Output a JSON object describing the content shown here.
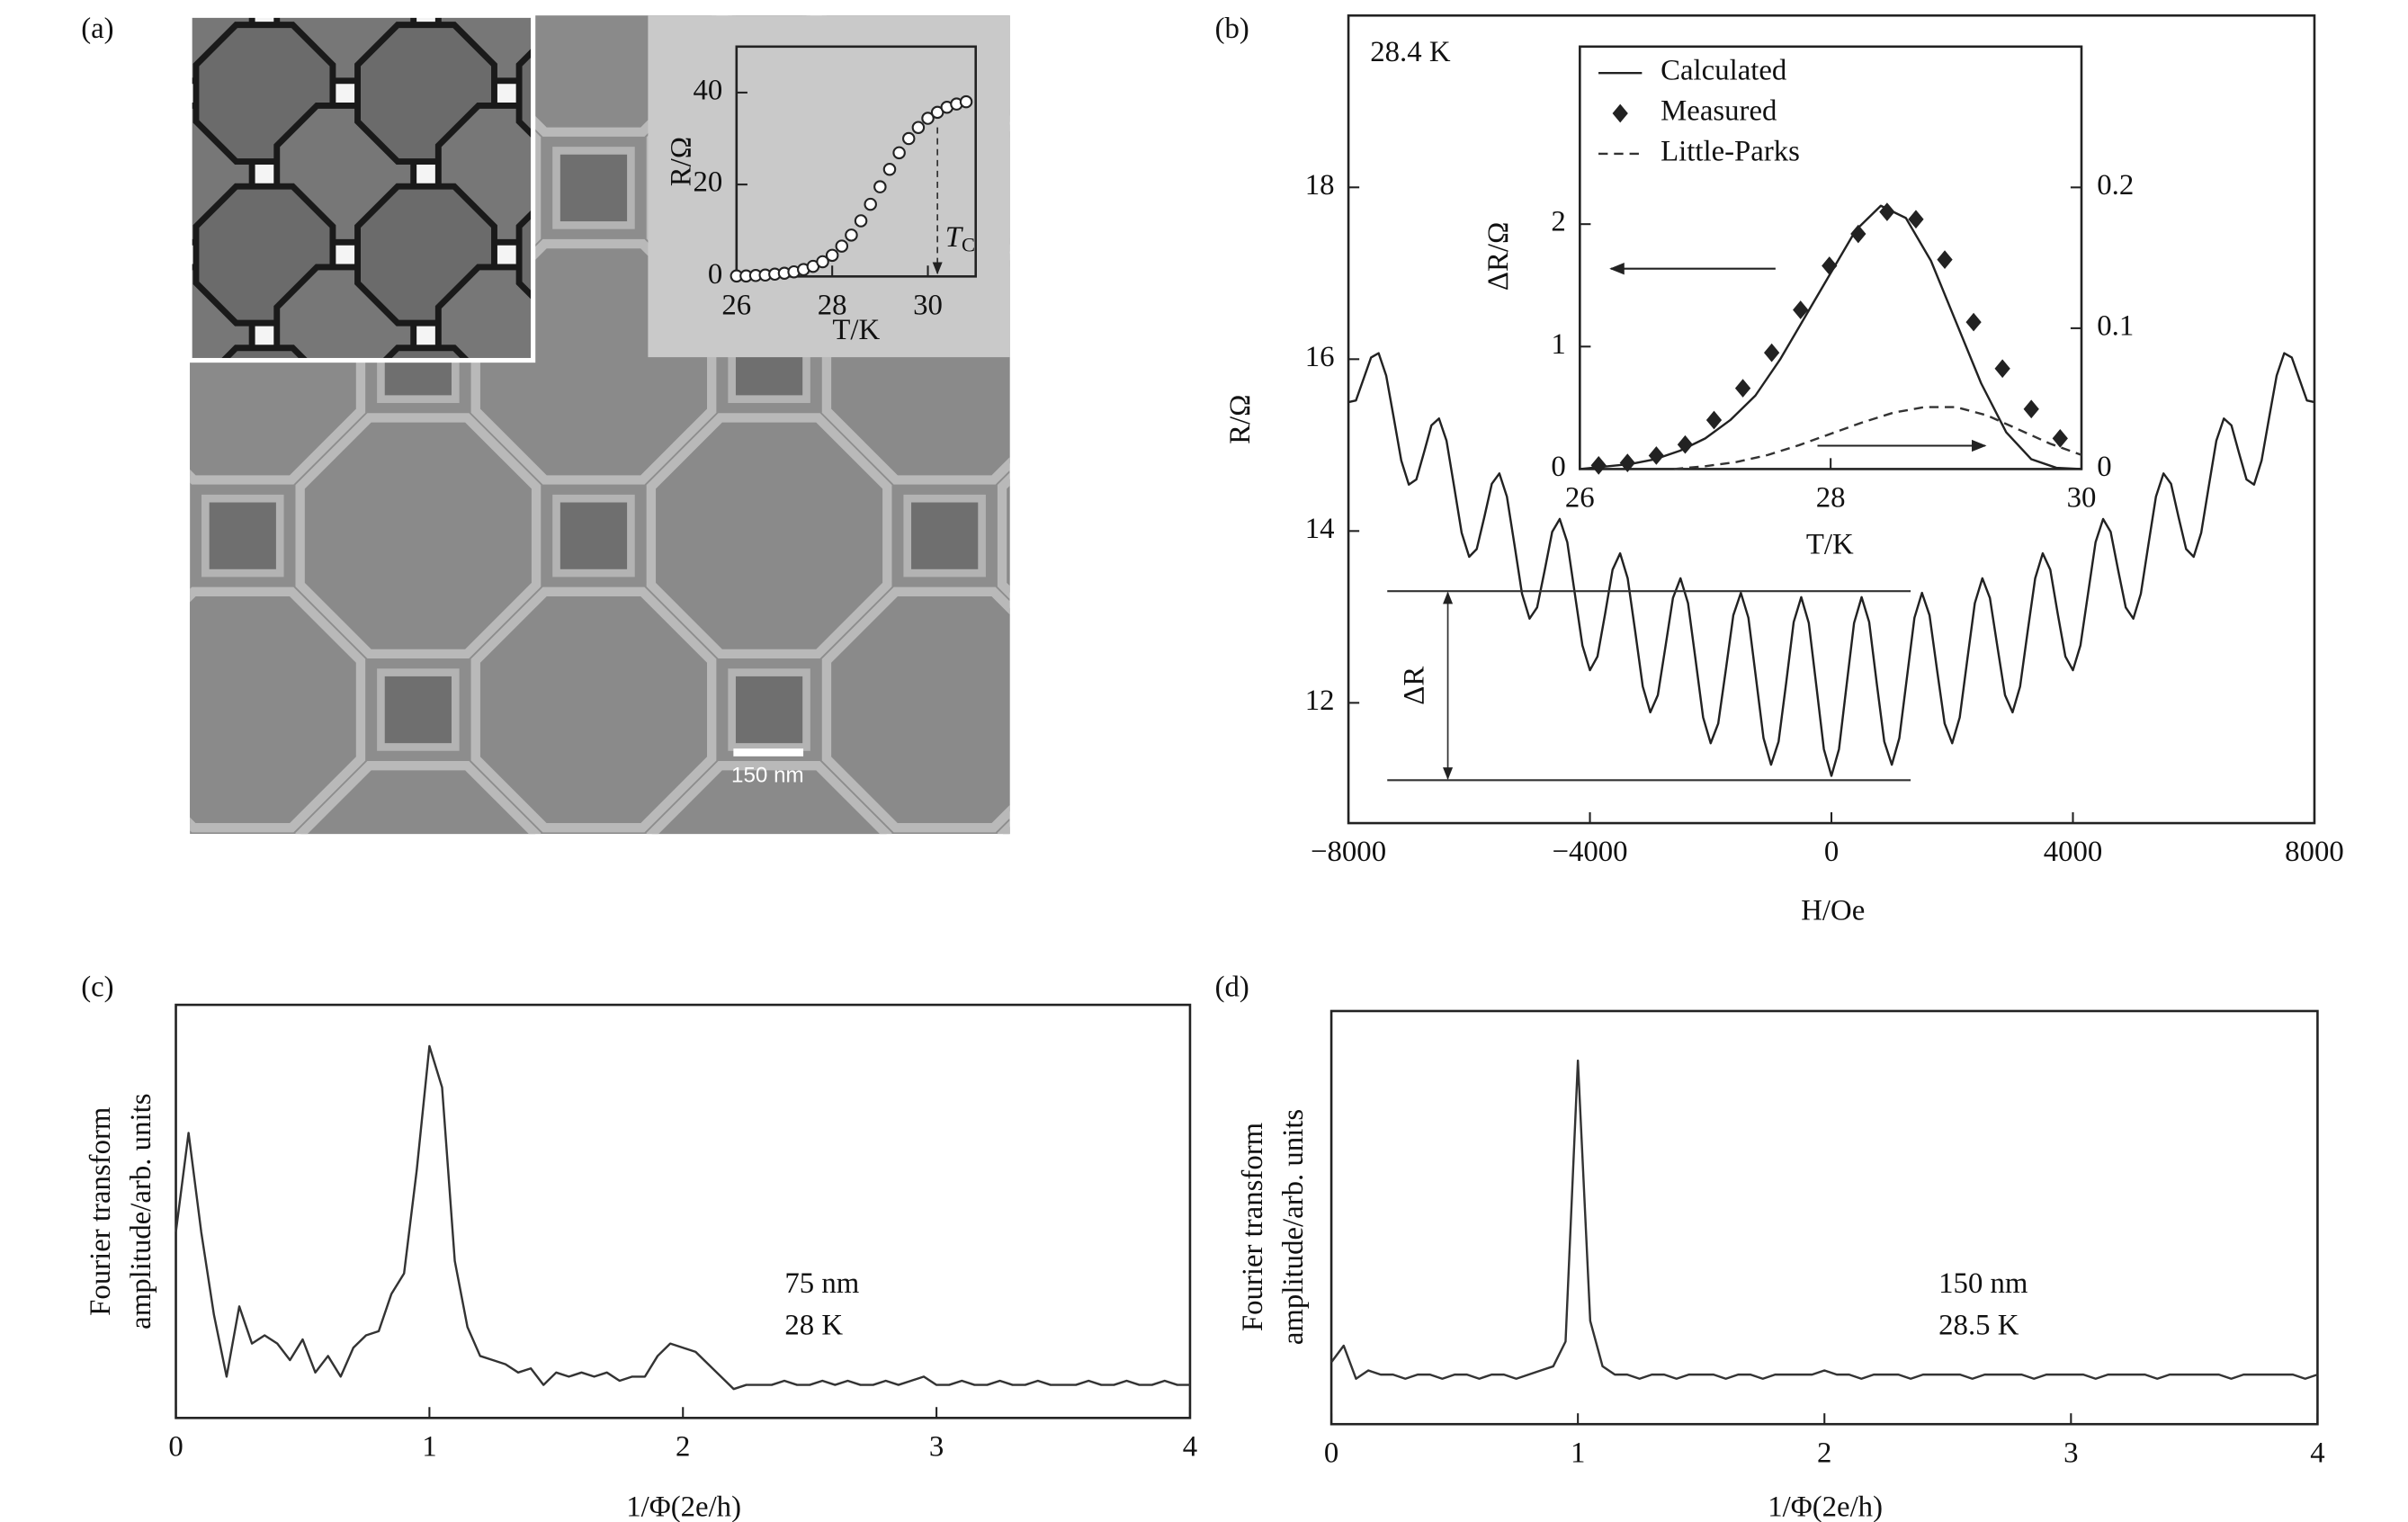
{
  "panels": [
    "(a)",
    "(b)",
    "(c)",
    "(d)"
  ],
  "scale_bar": "150 nm",
  "chart_data": [
    {
      "type": "scatter",
      "x_label": "T/K",
      "y_label": "R/Ω",
      "xlim": [
        26,
        31
      ],
      "ylim": [
        0,
        50
      ],
      "xticks": [
        26,
        28,
        30
      ],
      "yticks": [
        0,
        20,
        40
      ],
      "tc": {
        "label": "T",
        "sub": "C",
        "value": 30.2
      },
      "series": [
        {
          "color": "#222",
          "style": "markers",
          "marker": "circle",
          "x": [
            26.0,
            26.2,
            26.4,
            26.6,
            26.8,
            27.0,
            27.2,
            27.4,
            27.6,
            27.8,
            28.0,
            28.2,
            28.4,
            28.6,
            28.8,
            29.0,
            29.2,
            29.4,
            29.6,
            29.8,
            30.0,
            30.2,
            30.4,
            30.6,
            30.8
          ],
          "values": [
            0.1,
            0.1,
            0.2,
            0.3,
            0.5,
            0.7,
            1.0,
            1.5,
            2.2,
            3.2,
            4.6,
            6.6,
            9.0,
            12.1,
            15.7,
            19.5,
            23.3,
            26.9,
            30.0,
            32.4,
            34.4,
            35.7,
            36.8,
            37.5,
            38.0
          ]
        }
      ]
    },
    {
      "type": "line",
      "x_label": "H/Oe",
      "y_label": "R/Ω",
      "xlim": [
        -8000,
        8000
      ],
      "ylim": [
        10.6,
        20.0
      ],
      "xticks": [
        {
          "value": -8000,
          "label": "−8000"
        },
        {
          "value": -4000,
          "label": "−4000"
        },
        0,
        4000,
        8000
      ],
      "yticks": [
        12,
        14,
        16,
        18
      ],
      "temperature_label": "28.4 K",
      "delta_r": {
        "label": "ΔR",
        "upper": 13.3,
        "lower": 11.1
      },
      "series": [
        {
          "color": "#222",
          "style": "solid",
          "x": [
            -8000,
            -7875,
            -7750,
            -7625,
            -7500,
            -7375,
            -7250,
            -7125,
            -7000,
            -6875,
            -6750,
            -6625,
            -6500,
            -6375,
            -6250,
            -6125,
            -6000,
            -5875,
            -5750,
            -5625,
            -5500,
            -5375,
            -5250,
            -5125,
            -5000,
            -4875,
            -4750,
            -4625,
            -4500,
            -4375,
            -4250,
            -4125,
            -4000,
            -3875,
            -3750,
            -3625,
            -3500,
            -3375,
            -3250,
            -3125,
            -3000,
            -2875,
            -2750,
            -2625,
            -2500,
            -2375,
            -2250,
            -2125,
            -2000,
            -1875,
            -1750,
            -1625,
            -1500,
            -1375,
            -1250,
            -1125,
            -1000,
            -875,
            -750,
            -625,
            -500,
            -375,
            -250,
            -125,
            0,
            125,
            250,
            375,
            500,
            625,
            750,
            875,
            1000,
            1125,
            1250,
            1375,
            1500,
            1625,
            1750,
            1875,
            2000,
            2125,
            2250,
            2375,
            2500,
            2625,
            2750,
            2875,
            3000,
            3125,
            3250,
            3375,
            3500,
            3625,
            3750,
            3875,
            4000,
            4125,
            4250,
            4375,
            4500,
            4625,
            4750,
            4875,
            5000,
            5125,
            5250,
            5375,
            5500,
            5625,
            5750,
            5875,
            6000,
            6125,
            6250,
            6375,
            6500,
            6625,
            6750,
            6875,
            7000,
            7125,
            7250,
            7375,
            7500,
            7625,
            7750,
            7875,
            8000
          ],
          "values": [
            15.5,
            15.52,
            15.77,
            16.02,
            16.07,
            15.81,
            15.32,
            14.82,
            14.54,
            14.6,
            14.91,
            15.23,
            15.31,
            15.05,
            14.52,
            13.98,
            13.7,
            13.79,
            14.16,
            14.55,
            14.67,
            14.4,
            13.84,
            13.27,
            12.98,
            13.11,
            13.54,
            13.99,
            14.14,
            13.87,
            13.27,
            12.67,
            12.38,
            12.54,
            13.03,
            13.55,
            13.74,
            13.45,
            12.83,
            12.19,
            11.89,
            12.09,
            12.65,
            13.22,
            13.45,
            13.16,
            12.5,
            11.83,
            11.53,
            11.76,
            12.38,
            13.02,
            13.28,
            12.99,
            12.29,
            11.59,
            11.28,
            11.55,
            12.23,
            12.94,
            13.23,
            12.93,
            12.2,
            11.46,
            11.15,
            11.46,
            12.2,
            12.93,
            13.23,
            12.94,
            12.23,
            11.55,
            11.28,
            11.59,
            12.29,
            12.99,
            13.28,
            13.02,
            12.38,
            11.76,
            11.53,
            11.83,
            12.5,
            13.16,
            13.45,
            13.22,
            12.65,
            12.09,
            11.89,
            12.19,
            12.83,
            13.45,
            13.74,
            13.55,
            13.03,
            12.54,
            12.38,
            12.67,
            13.27,
            13.87,
            14.14,
            13.99,
            13.54,
            13.11,
            12.98,
            13.27,
            13.84,
            14.4,
            14.67,
            14.55,
            14.16,
            13.79,
            13.7,
            13.98,
            14.52,
            15.05,
            15.31,
            15.23,
            14.91,
            14.6,
            14.54,
            14.82,
            15.32,
            15.81,
            16.07,
            16.02,
            15.77,
            15.52,
            15.5
          ]
        }
      ]
    },
    {
      "type": "line",
      "x_label": "T/K",
      "y_label": "ΔR/Ω",
      "xlim": [
        26,
        30
      ],
      "ylim": [
        0,
        3.45
      ],
      "y2lim": [
        0,
        0.3
      ],
      "xticks": [
        26,
        28,
        30
      ],
      "yticks": [
        0,
        1,
        2
      ],
      "y2ticks": [
        0,
        0.1,
        0.2
      ],
      "series": [
        {
          "name": "Calculated",
          "color": "#222",
          "style": "solid",
          "x": [
            26.0,
            26.2,
            26.4,
            26.6,
            26.8,
            27.0,
            27.2,
            27.4,
            27.6,
            27.8,
            28.0,
            28.2,
            28.4,
            28.6,
            28.8,
            29.0,
            29.2,
            29.4,
            29.6,
            29.8,
            30.0
          ],
          "values": [
            0,
            0.02,
            0.04,
            0.08,
            0.15,
            0.25,
            0.4,
            0.6,
            0.9,
            1.25,
            1.6,
            1.95,
            2.15,
            2.05,
            1.7,
            1.2,
            0.7,
            0.3,
            0.08,
            0.01,
            0
          ]
        },
        {
          "name": "Measured",
          "color": "#222",
          "style": "markers",
          "marker": "diamond",
          "x": [
            26.15,
            26.38,
            26.61,
            26.84,
            27.07,
            27.3,
            27.53,
            27.76,
            27.99,
            28.22,
            28.45,
            28.68,
            28.91,
            29.14,
            29.37,
            29.6,
            29.83
          ],
          "values": [
            0.03,
            0.05,
            0.11,
            0.2,
            0.4,
            0.66,
            0.95,
            1.3,
            1.66,
            1.92,
            2.1,
            2.04,
            1.71,
            1.2,
            0.82,
            0.49,
            0.25
          ]
        },
        {
          "name": "Little-Parks",
          "color": "#333",
          "style": "dashed",
          "axis": "y2",
          "x": [
            26.75,
            27.0,
            27.25,
            27.5,
            27.75,
            28.0,
            28.25,
            28.5,
            28.75,
            29.0,
            29.25,
            29.5,
            29.75,
            30.0
          ],
          "values": [
            0,
            0.002,
            0.005,
            0.01,
            0.017,
            0.025,
            0.033,
            0.04,
            0.044,
            0.044,
            0.038,
            0.028,
            0.018,
            0.01
          ]
        }
      ]
    },
    {
      "type": "line",
      "x_label": "1/Φ(2e/h)",
      "y_label": [
        "Fourier transform",
        "amplitude/arb. units"
      ],
      "xlim": [
        0,
        4
      ],
      "ylim": [
        0,
        100
      ],
      "xticks": [
        0,
        1,
        2,
        3,
        4
      ],
      "labels": [
        "75 nm",
        "28 K"
      ],
      "series": [
        {
          "color": "#333",
          "style": "solid",
          "x": [
            0,
            0.05,
            0.1,
            0.15,
            0.2,
            0.25,
            0.3,
            0.35,
            0.4,
            0.45,
            0.5,
            0.55,
            0.6,
            0.65,
            0.7,
            0.75,
            0.8,
            0.85,
            0.9,
            0.95,
            1.0,
            1.05,
            1.1,
            1.15,
            1.2,
            1.25,
            1.3,
            1.35,
            1.4,
            1.45,
            1.5,
            1.55,
            1.6,
            1.65,
            1.7,
            1.75,
            1.8,
            1.85,
            1.9,
            1.95,
            2.0,
            2.05,
            2.1,
            2.15,
            2.2,
            2.25,
            2.3,
            2.35,
            2.4,
            2.45,
            2.5,
            2.55,
            2.6,
            2.65,
            2.7,
            2.75,
            2.8,
            2.85,
            2.9,
            2.95,
            3.0,
            3.05,
            3.1,
            3.15,
            3.2,
            3.25,
            3.3,
            3.35,
            3.4,
            3.45,
            3.5,
            3.55,
            3.6,
            3.65,
            3.7,
            3.75,
            3.8,
            3.85,
            3.9,
            3.95,
            4.0
          ],
          "values": [
            45,
            69,
            45,
            25,
            10,
            27,
            18,
            20,
            18,
            14,
            19,
            11,
            15,
            10,
            17,
            20,
            21,
            30,
            35,
            60,
            90,
            80,
            38,
            22,
            15,
            14,
            13,
            11,
            12,
            8,
            11,
            10,
            11,
            10,
            11,
            9,
            10,
            10,
            15,
            18,
            17,
            16,
            13,
            10,
            7,
            8,
            8,
            8,
            9,
            8,
            8,
            9,
            8,
            9,
            8,
            8,
            9,
            8,
            9,
            10,
            8,
            8,
            9,
            8,
            8,
            9,
            8,
            8,
            9,
            8,
            8,
            8,
            9,
            8,
            8,
            9,
            8,
            8,
            9,
            8,
            8
          ]
        }
      ]
    },
    {
      "type": "line",
      "x_label": "1/Φ(2e/h)",
      "y_label": [
        "Fourier transform",
        "amplitude/arb. units"
      ],
      "xlim": [
        0,
        4
      ],
      "ylim": [
        0,
        100
      ],
      "xticks": [
        0,
        1,
        2,
        3,
        4
      ],
      "labels": [
        "150 nm",
        "28.5 K"
      ],
      "series": [
        {
          "color": "#333",
          "style": "solid",
          "x": [
            0,
            0.05,
            0.1,
            0.15,
            0.2,
            0.25,
            0.3,
            0.35,
            0.4,
            0.45,
            0.5,
            0.55,
            0.6,
            0.65,
            0.7,
            0.75,
            0.8,
            0.85,
            0.9,
            0.95,
            1.0,
            1.05,
            1.1,
            1.15,
            1.2,
            1.25,
            1.3,
            1.35,
            1.4,
            1.45,
            1.5,
            1.55,
            1.6,
            1.65,
            1.7,
            1.75,
            1.8,
            1.85,
            1.9,
            1.95,
            2.0,
            2.05,
            2.1,
            2.15,
            2.2,
            2.25,
            2.3,
            2.35,
            2.4,
            2.45,
            2.5,
            2.55,
            2.6,
            2.65,
            2.7,
            2.75,
            2.8,
            2.85,
            2.9,
            2.95,
            3.0,
            3.05,
            3.1,
            3.15,
            3.2,
            3.25,
            3.3,
            3.35,
            3.4,
            3.45,
            3.5,
            3.55,
            3.6,
            3.65,
            3.7,
            3.75,
            3.8,
            3.85,
            3.9,
            3.95,
            4.0
          ],
          "values": [
            15,
            19,
            11,
            13,
            12,
            12,
            11,
            12,
            12,
            11,
            12,
            12,
            11,
            12,
            12,
            11,
            12,
            13,
            14,
            20,
            88,
            25,
            14,
            12,
            12,
            11,
            12,
            12,
            11,
            12,
            12,
            12,
            11,
            12,
            12,
            11,
            12,
            12,
            12,
            12,
            13,
            12,
            12,
            11,
            12,
            12,
            12,
            11,
            12,
            12,
            12,
            12,
            11,
            12,
            12,
            12,
            12,
            11,
            12,
            12,
            12,
            12,
            11,
            12,
            12,
            12,
            12,
            11,
            12,
            12,
            12,
            12,
            12,
            11,
            12,
            12,
            12,
            12,
            12,
            11,
            12
          ]
        }
      ]
    }
  ]
}
